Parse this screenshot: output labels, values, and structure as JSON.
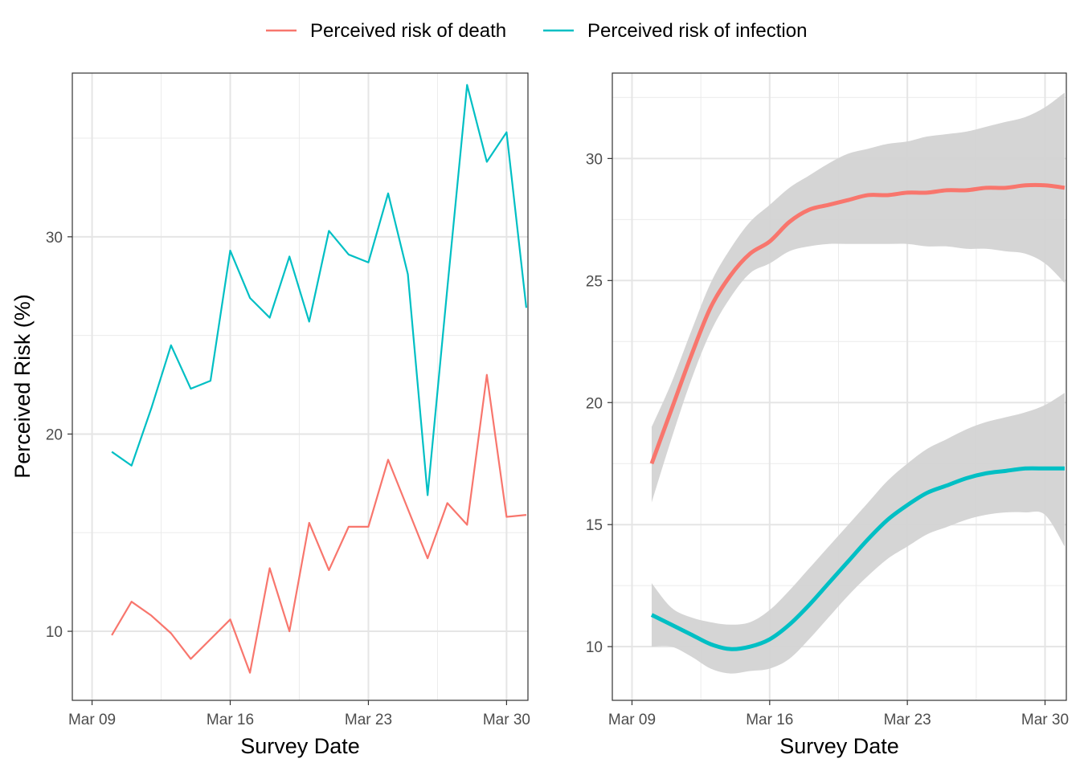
{
  "legend": {
    "position": "top",
    "entries": [
      {
        "label": "Perceived risk of death",
        "color": "#F8766D"
      },
      {
        "label": "Perceived risk of infection",
        "color": "#00BFC4"
      }
    ]
  },
  "chart_data": [
    {
      "type": "line",
      "title": "",
      "xlabel": "Survey Date",
      "ylabel": "Perceived Risk (%)",
      "x_tick_labels": [
        "Mar 09",
        "Mar 16",
        "Mar 23",
        "Mar 30"
      ],
      "y_tick_labels": [
        "10",
        "20",
        "30"
      ],
      "xlim": [
        "2020-03-08T00:00",
        "2020-03-31T02:00"
      ],
      "ylim": [
        6.5,
        38.3
      ],
      "grid": true,
      "x": [
        "2020-03-10",
        "2020-03-11",
        "2020-03-12",
        "2020-03-13",
        "2020-03-14",
        "2020-03-15",
        "2020-03-16",
        "2020-03-17",
        "2020-03-18",
        "2020-03-19",
        "2020-03-20",
        "2020-03-21",
        "2020-03-22",
        "2020-03-23",
        "2020-03-24",
        "2020-03-25",
        "2020-03-26",
        "2020-03-27",
        "2020-03-28",
        "2020-03-29",
        "2020-03-30",
        "2020-03-31"
      ],
      "series": [
        {
          "name": "Perceived risk of death",
          "color": "#F8766D",
          "values": [
            9.8,
            11.5,
            10.8,
            9.9,
            8.6,
            9.6,
            10.6,
            7.9,
            13.2,
            10.0,
            15.5,
            13.1,
            15.3,
            15.3,
            18.7,
            16.2,
            13.7,
            16.5,
            15.4,
            23.0,
            15.8,
            15.9
          ]
        },
        {
          "name": "Perceived risk of infection",
          "color": "#00BFC4",
          "values": [
            19.1,
            18.4,
            21.3,
            24.5,
            22.3,
            22.7,
            29.3,
            26.9,
            25.9,
            29.0,
            25.7,
            30.3,
            29.1,
            28.7,
            32.2,
            28.1,
            16.9,
            27.4,
            37.7,
            33.8,
            35.3,
            26.4
          ]
        }
      ]
    },
    {
      "type": "line",
      "title": "",
      "xlabel": "Survey Date",
      "ylabel": "",
      "x_tick_labels": [
        "Mar 09",
        "Mar 16",
        "Mar 23",
        "Mar 30"
      ],
      "y_tick_labels": [
        "10",
        "15",
        "20",
        "25",
        "30"
      ],
      "xlim": [
        "2020-03-08T00:00",
        "2020-03-31T02:00"
      ],
      "ylim": [
        7.8,
        33.5
      ],
      "grid": true,
      "smoothed": true,
      "confidence_band_color": "#d3d3d3",
      "x": [
        "2020-03-10",
        "2020-03-11",
        "2020-03-12",
        "2020-03-13",
        "2020-03-14",
        "2020-03-15",
        "2020-03-16",
        "2020-03-17",
        "2020-03-18",
        "2020-03-19",
        "2020-03-20",
        "2020-03-21",
        "2020-03-22",
        "2020-03-23",
        "2020-03-24",
        "2020-03-25",
        "2020-03-26",
        "2020-03-27",
        "2020-03-28",
        "2020-03-29",
        "2020-03-30",
        "2020-03-31"
      ],
      "series": [
        {
          "name": "Perceived risk of death",
          "color": "#F8766D",
          "values": [
            17.5,
            19.7,
            21.9,
            23.9,
            25.2,
            26.1,
            26.6,
            27.4,
            27.9,
            28.1,
            28.3,
            28.5,
            28.5,
            28.6,
            28.6,
            28.7,
            28.7,
            28.8,
            28.8,
            28.9,
            28.9,
            28.8
          ],
          "lower": [
            15.9,
            18.5,
            20.9,
            22.9,
            24.3,
            25.3,
            25.7,
            26.2,
            26.4,
            26.5,
            26.5,
            26.5,
            26.5,
            26.5,
            26.4,
            26.4,
            26.3,
            26.3,
            26.2,
            26.1,
            25.7,
            24.9
          ],
          "upper": [
            19.0,
            20.8,
            22.9,
            24.9,
            26.3,
            27.4,
            28.1,
            28.8,
            29.3,
            29.8,
            30.2,
            30.4,
            30.6,
            30.7,
            30.9,
            31.0,
            31.1,
            31.3,
            31.5,
            31.7,
            32.1,
            32.7
          ]
        },
        {
          "name": "Perceived risk of infection",
          "color": "#00BFC4",
          "values": [
            11.3,
            10.9,
            10.5,
            10.1,
            9.9,
            10.0,
            10.3,
            10.9,
            11.7,
            12.6,
            13.5,
            14.4,
            15.2,
            15.8,
            16.3,
            16.6,
            16.9,
            17.1,
            17.2,
            17.3,
            17.3,
            17.3
          ],
          "lower": [
            10.0,
            10.0,
            9.6,
            9.1,
            8.9,
            9.0,
            9.1,
            9.5,
            10.3,
            11.2,
            12.1,
            12.9,
            13.6,
            14.1,
            14.6,
            14.9,
            15.2,
            15.4,
            15.5,
            15.5,
            15.4,
            14.1
          ],
          "upper": [
            12.6,
            11.6,
            11.2,
            11.0,
            10.9,
            11.0,
            11.5,
            12.3,
            13.2,
            14.1,
            15.0,
            15.9,
            16.8,
            17.5,
            18.1,
            18.5,
            18.9,
            19.2,
            19.4,
            19.6,
            19.9,
            20.4
          ]
        }
      ]
    }
  ]
}
